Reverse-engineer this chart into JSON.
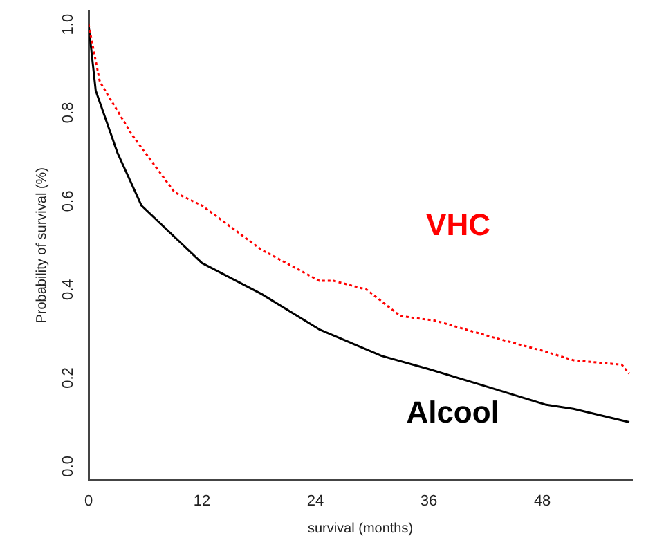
{
  "chart_data": {
    "type": "line",
    "xlabel": "survival (months)",
    "ylabel": "Probability of survival (%)",
    "xlim": [
      0,
      57.5
    ],
    "ylim": [
      -0.03,
      1.03
    ],
    "xticks": [
      0,
      12,
      24,
      36,
      48
    ],
    "yticks": [
      {
        "value": 0,
        "label": "0.0"
      },
      0.2,
      0.4,
      0.6,
      0.8,
      {
        "value": 1,
        "label": "1.0"
      }
    ],
    "grid": false,
    "legend": false,
    "marker": "none",
    "series": [
      {
        "name": "VHC",
        "color": "#ff0000",
        "line_style": "dotted",
        "x": [
          0,
          1.2,
          4.6,
          9.1,
          12,
          18.3,
          24.4,
          25.9,
          29.4,
          33,
          36.6,
          43.1,
          48.3,
          51.3,
          56.4,
          57.2
        ],
        "values": [
          1.0,
          0.87,
          0.75,
          0.62,
          0.59,
          0.49,
          0.42,
          0.42,
          0.4,
          0.34,
          0.33,
          0.29,
          0.26,
          0.24,
          0.23,
          0.21
        ]
      },
      {
        "name": "Alcool",
        "color": "#000000",
        "line_style": "solid",
        "x": [
          0,
          0.76,
          3.05,
          5.6,
          12,
          18.3,
          24.4,
          31,
          36,
          42.2,
          48.3,
          51.3,
          57.2
        ],
        "values": [
          1.0,
          0.85,
          0.71,
          0.59,
          0.46,
          0.39,
          0.31,
          0.25,
          0.22,
          0.18,
          0.14,
          0.13,
          0.1
        ]
      }
    ]
  }
}
